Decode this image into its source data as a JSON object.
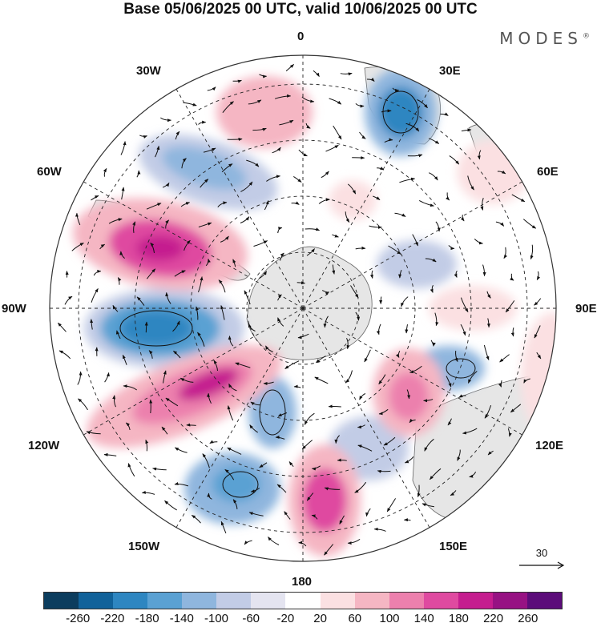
{
  "title": "Base 05/06/2025 00 UTC, valid 10/06/2025 00 UTC",
  "brand": "MODES",
  "brand_mark": "®",
  "longitude_labels": {
    "n0": "0",
    "n30e": "30E",
    "n60e": "60E",
    "n90e": "90E",
    "n120e": "120E",
    "n150e": "150E",
    "n180": "180",
    "n150w": "150W",
    "n120w": "120W",
    "n90w": "90W",
    "n60w": "60W",
    "n30w": "30W"
  },
  "reference_vector": "30",
  "colorbar": {
    "colors": [
      "#0c3d5e",
      "#11629a",
      "#2e86c1",
      "#5aa1d3",
      "#8fb6de",
      "#c2cce6",
      "#e4e4f0",
      "#ffffff",
      "#fbe0e2",
      "#f5b6c3",
      "#ec80ad",
      "#df4aa0",
      "#c51d8f",
      "#971283",
      "#5c0c7a"
    ],
    "ticks": [
      "-260",
      "-220",
      "-180",
      "-140",
      "-100",
      "-60",
      "-20",
      "20",
      "60",
      "100",
      "140",
      "180",
      "220",
      "260"
    ]
  },
  "icons": {
    "arrow": "arrow-icon"
  }
}
